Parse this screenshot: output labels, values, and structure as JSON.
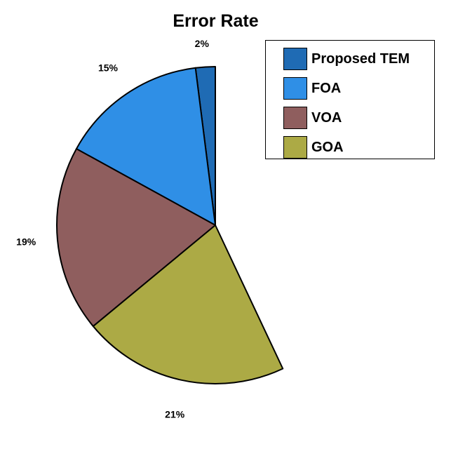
{
  "chart_data": {
    "type": "pie",
    "title": "Error Rate",
    "categories": [
      "Proposed TEM",
      "FOA",
      "VOA",
      "GOA"
    ],
    "values": [
      2,
      15,
      19,
      21
    ],
    "value_labels": [
      "2%",
      "15%",
      "19%",
      "21%"
    ],
    "colors": [
      "#1F6BB4",
      "#2F8FE6",
      "#8F5E5E",
      "#ACAA45"
    ],
    "start_angle_deg": 90,
    "direction": "counterclockwise",
    "legend_position": "top-right"
  }
}
